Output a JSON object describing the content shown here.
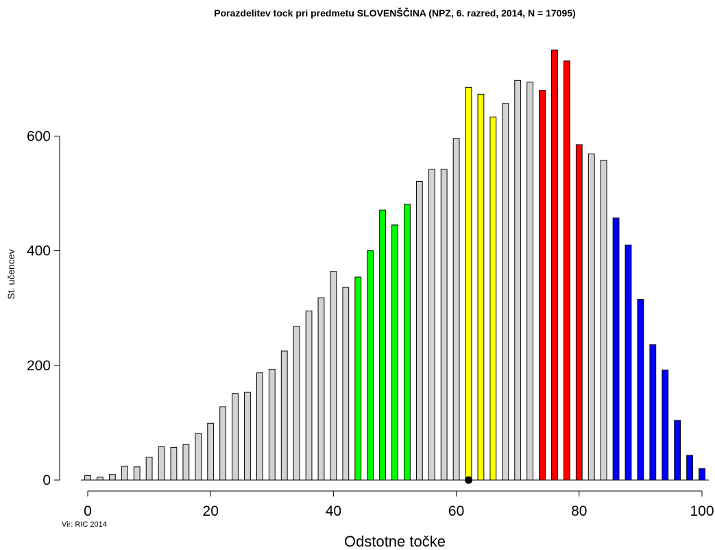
{
  "chart_data": {
    "type": "bar",
    "title": "Porazdelitev tock pri predmetu SLOVENŠČINA (NPZ, 6. razred, 2014, N = 17095)",
    "xlabel": "Odstotne točke",
    "ylabel": "St. učencev",
    "source_note": "Vir: RIC 2014",
    "xlim": [
      0,
      100
    ],
    "ylim": [
      0,
      750
    ],
    "xticks": [
      "0",
      "20",
      "40",
      "60",
      "80",
      "100"
    ],
    "yticks": [
      "0",
      "200",
      "400",
      "600"
    ],
    "grid": false,
    "legend": "none",
    "colors": {
      "default": "#d3d3d3",
      "green": "#00ff00",
      "yellow": "#ffff00",
      "red": "#ff0000",
      "blue": "#0000ff",
      "outline": "#000000",
      "marker": "#000000"
    },
    "bars": [
      {
        "x": 0,
        "value": 8,
        "color": "default"
      },
      {
        "x": 2,
        "value": 5,
        "color": "default"
      },
      {
        "x": 4,
        "value": 10,
        "color": "default"
      },
      {
        "x": 6,
        "value": 24,
        "color": "default"
      },
      {
        "x": 8,
        "value": 23,
        "color": "default"
      },
      {
        "x": 10,
        "value": 40,
        "color": "default"
      },
      {
        "x": 12,
        "value": 58,
        "color": "default"
      },
      {
        "x": 14,
        "value": 57,
        "color": "default"
      },
      {
        "x": 16,
        "value": 62,
        "color": "default"
      },
      {
        "x": 18,
        "value": 81,
        "color": "default"
      },
      {
        "x": 20,
        "value": 99,
        "color": "default"
      },
      {
        "x": 22,
        "value": 128,
        "color": "default"
      },
      {
        "x": 24,
        "value": 151,
        "color": "default"
      },
      {
        "x": 26,
        "value": 153,
        "color": "default"
      },
      {
        "x": 28,
        "value": 187,
        "color": "default"
      },
      {
        "x": 30,
        "value": 193,
        "color": "default"
      },
      {
        "x": 32,
        "value": 225,
        "color": "default"
      },
      {
        "x": 34,
        "value": 268,
        "color": "default"
      },
      {
        "x": 36,
        "value": 295,
        "color": "default"
      },
      {
        "x": 38,
        "value": 318,
        "color": "default"
      },
      {
        "x": 40,
        "value": 364,
        "color": "default"
      },
      {
        "x": 42,
        "value": 336,
        "color": "default"
      },
      {
        "x": 44,
        "value": 354,
        "color": "green"
      },
      {
        "x": 46,
        "value": 400,
        "color": "green"
      },
      {
        "x": 48,
        "value": 471,
        "color": "green"
      },
      {
        "x": 50,
        "value": 445,
        "color": "green"
      },
      {
        "x": 52,
        "value": 481,
        "color": "green"
      },
      {
        "x": 54,
        "value": 521,
        "color": "default"
      },
      {
        "x": 56,
        "value": 542,
        "color": "default"
      },
      {
        "x": 58,
        "value": 542,
        "color": "default"
      },
      {
        "x": 60,
        "value": 596,
        "color": "default"
      },
      {
        "x": 62,
        "value": 685,
        "color": "yellow"
      },
      {
        "x": 64,
        "value": 673,
        "color": "yellow"
      },
      {
        "x": 66,
        "value": 633,
        "color": "yellow"
      },
      {
        "x": 68,
        "value": 657,
        "color": "default"
      },
      {
        "x": 70,
        "value": 697,
        "color": "default"
      },
      {
        "x": 72,
        "value": 694,
        "color": "default"
      },
      {
        "x": 74,
        "value": 680,
        "color": "red"
      },
      {
        "x": 76,
        "value": 750,
        "color": "red"
      },
      {
        "x": 78,
        "value": 731,
        "color": "red"
      },
      {
        "x": 80,
        "value": 585,
        "color": "red"
      },
      {
        "x": 82,
        "value": 569,
        "color": "default"
      },
      {
        "x": 84,
        "value": 558,
        "color": "default"
      },
      {
        "x": 86,
        "value": 457,
        "color": "blue"
      },
      {
        "x": 88,
        "value": 410,
        "color": "blue"
      },
      {
        "x": 90,
        "value": 315,
        "color": "blue"
      },
      {
        "x": 92,
        "value": 236,
        "color": "blue"
      },
      {
        "x": 94,
        "value": 192,
        "color": "blue"
      },
      {
        "x": 96,
        "value": 104,
        "color": "blue"
      },
      {
        "x": 98,
        "value": 43,
        "color": "blue"
      },
      {
        "x": 100,
        "value": 20,
        "color": "blue"
      }
    ],
    "marker": {
      "x": 62,
      "y": 0
    }
  }
}
